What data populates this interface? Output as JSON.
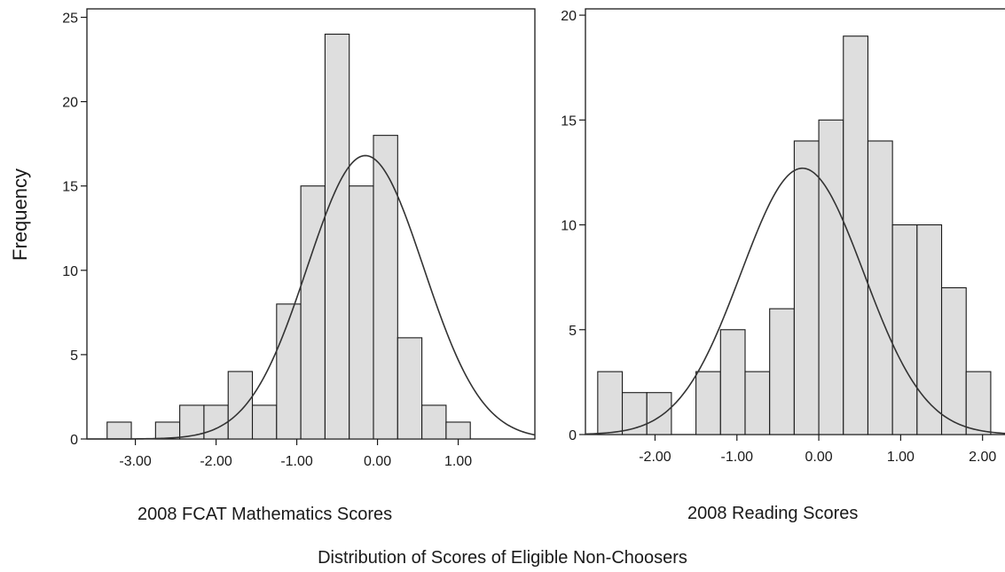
{
  "figure": {
    "ylabel": "Frequency",
    "caption": "Distribution of Scores of Eligible Non-Choosers"
  },
  "chart_data": [
    {
      "type": "bar",
      "subtype": "histogram-with-normal-curve",
      "title": "",
      "xlabel": "2008 FCAT Mathematics Scores",
      "ylabel": "Frequency",
      "bin_width": 0.3,
      "bins": [
        {
          "start": -3.35,
          "end": -3.05,
          "count": 1
        },
        {
          "start": -3.05,
          "end": -2.75,
          "count": 0
        },
        {
          "start": -2.75,
          "end": -2.45,
          "count": 1
        },
        {
          "start": -2.45,
          "end": -2.15,
          "count": 2
        },
        {
          "start": -2.15,
          "end": -1.85,
          "count": 2
        },
        {
          "start": -1.85,
          "end": -1.55,
          "count": 4
        },
        {
          "start": -1.55,
          "end": -1.25,
          "count": 2
        },
        {
          "start": -1.25,
          "end": -0.95,
          "count": 8
        },
        {
          "start": -0.95,
          "end": -0.65,
          "count": 15
        },
        {
          "start": -0.65,
          "end": -0.35,
          "count": 24
        },
        {
          "start": -0.35,
          "end": -0.05,
          "count": 15
        },
        {
          "start": -0.05,
          "end": 0.25,
          "count": 18
        },
        {
          "start": 0.25,
          "end": 0.55,
          "count": 6
        },
        {
          "start": 0.55,
          "end": 0.85,
          "count": 2
        },
        {
          "start": 0.85,
          "end": 1.15,
          "count": 1
        }
      ],
      "xticks": [
        "-3.00",
        "-2.00",
        "-1.00",
        "0.00",
        "1.00"
      ],
      "yticks": [
        0,
        5,
        10,
        15,
        20,
        25
      ],
      "xlim": [
        -3.6,
        1.95
      ],
      "ylim": [
        0,
        25.5
      ],
      "normal_curve": {
        "mean": -0.15,
        "sd": 0.72,
        "peak": 16.8
      },
      "grid": false,
      "legend": "none"
    },
    {
      "type": "bar",
      "subtype": "histogram-with-normal-curve",
      "title": "",
      "xlabel": "2008 Reading Scores",
      "ylabel": "Frequency",
      "bin_width": 0.3,
      "bins": [
        {
          "start": -2.7,
          "end": -2.4,
          "count": 3
        },
        {
          "start": -2.4,
          "end": -2.1,
          "count": 2
        },
        {
          "start": -2.1,
          "end": -1.8,
          "count": 2
        },
        {
          "start": -1.8,
          "end": -1.5,
          "count": 0
        },
        {
          "start": -1.5,
          "end": -1.2,
          "count": 3
        },
        {
          "start": -1.2,
          "end": -0.9,
          "count": 5
        },
        {
          "start": -0.9,
          "end": -0.6,
          "count": 3
        },
        {
          "start": -0.6,
          "end": -0.3,
          "count": 6
        },
        {
          "start": -0.3,
          "end": 0.0,
          "count": 14
        },
        {
          "start": 0.0,
          "end": 0.3,
          "count": 15
        },
        {
          "start": 0.3,
          "end": 0.6,
          "count": 19
        },
        {
          "start": 0.6,
          "end": 0.9,
          "count": 14
        },
        {
          "start": 0.9,
          "end": 1.2,
          "count": 10
        },
        {
          "start": 1.2,
          "end": 1.5,
          "count": 10
        },
        {
          "start": 1.5,
          "end": 1.8,
          "count": 7
        },
        {
          "start": 1.8,
          "end": 2.1,
          "count": 3
        }
      ],
      "xticks": [
        "-2.00",
        "-1.00",
        "0.00",
        "1.00",
        "2.00"
      ],
      "yticks": [
        0,
        5,
        10,
        15,
        20
      ],
      "xlim": [
        -2.85,
        2.35
      ],
      "ylim": [
        0,
        20.3
      ],
      "normal_curve": {
        "mean": -0.2,
        "sd": 0.75,
        "peak": 12.7
      },
      "grid": false,
      "legend": "none"
    }
  ],
  "style": {
    "bar_fill": "#dedede",
    "bar_stroke": "#1a1a1a",
    "curve_color": "#333333",
    "frame_color": "#1a1a1a"
  }
}
